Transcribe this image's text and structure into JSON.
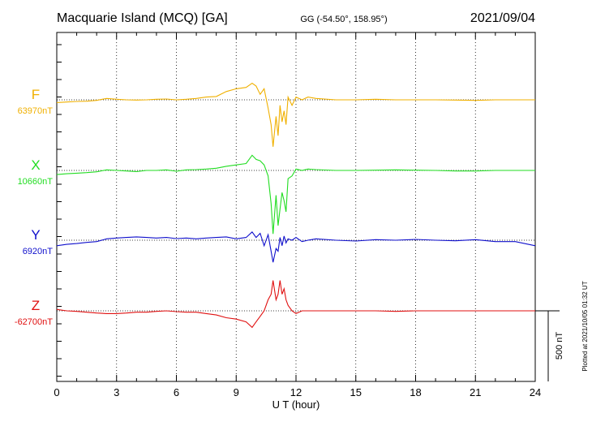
{
  "title": "Macquarie Island (MCQ)  [GA]",
  "coords": "GG (-54.50°, 158.95°)",
  "date": "2021/09/04",
  "plotted": "Plotted at 2021/10/05 01:32 UT",
  "scale_label": "500 nT",
  "chart_data": {
    "type": "line",
    "xlabel": "U T (hour)",
    "xlim": [
      0,
      24
    ],
    "xticks": [
      0,
      3,
      6,
      9,
      12,
      15,
      18,
      21,
      24
    ],
    "series": [
      {
        "name": "F",
        "baseline_label": "63970nT",
        "color": "#f0b000",
        "x": [
          0,
          0.5,
          1,
          1.5,
          2,
          2.5,
          3,
          3.5,
          4,
          4.5,
          5,
          5.5,
          6,
          6.5,
          7,
          7.5,
          8,
          8.5,
          9,
          9.5,
          9.8,
          10,
          10.2,
          10.4,
          10.6,
          10.75,
          10.85,
          11.0,
          11.1,
          11.2,
          11.3,
          11.4,
          11.5,
          11.6,
          11.8,
          12,
          12.3,
          12.6,
          13,
          14,
          15,
          16,
          17,
          18,
          19,
          20,
          21,
          22,
          23,
          24
        ],
        "values": [
          -10,
          -8,
          -6,
          -5,
          -2,
          5,
          2,
          0,
          -1,
          0,
          2,
          3,
          0,
          2,
          5,
          10,
          12,
          30,
          40,
          45,
          60,
          50,
          20,
          40,
          -30,
          -90,
          -170,
          -60,
          -130,
          -20,
          -80,
          -40,
          -90,
          10,
          -20,
          10,
          0,
          10,
          5,
          0,
          0,
          2,
          0,
          0,
          0,
          -1,
          -2,
          0,
          0,
          0
        ]
      },
      {
        "name": "X",
        "baseline_label": "10660nT",
        "color": "#22dd22",
        "x": [
          0,
          0.5,
          1,
          1.5,
          2,
          2.5,
          3,
          3.5,
          4,
          4.5,
          5,
          5.5,
          6,
          6.5,
          7,
          7.5,
          8,
          8.5,
          9,
          9.5,
          9.8,
          10,
          10.2,
          10.4,
          10.6,
          10.75,
          10.85,
          11.0,
          11.1,
          11.2,
          11.3,
          11.4,
          11.5,
          11.6,
          11.8,
          12,
          12.3,
          12.6,
          13,
          14,
          15,
          16,
          17,
          18,
          19,
          20,
          21,
          22,
          23,
          24
        ],
        "values": [
          -15,
          -12,
          -10,
          -8,
          -5,
          2,
          0,
          -2,
          -4,
          0,
          0,
          2,
          -3,
          2,
          3,
          5,
          8,
          15,
          20,
          25,
          55,
          40,
          35,
          20,
          -20,
          -120,
          -230,
          -90,
          -200,
          -140,
          -80,
          -110,
          -150,
          -30,
          -20,
          5,
          0,
          5,
          3,
          0,
          0,
          1,
          2,
          1,
          0,
          -2,
          -2,
          0,
          0,
          0
        ]
      },
      {
        "name": "Y",
        "baseline_label": "6920nT",
        "color": "#1010cc",
        "x": [
          0,
          0.5,
          1,
          1.5,
          2,
          2.5,
          3,
          3.5,
          4,
          4.5,
          5,
          5.5,
          6,
          6.5,
          7,
          7.5,
          8,
          8.5,
          9,
          9.5,
          9.8,
          10,
          10.2,
          10.4,
          10.6,
          10.75,
          10.85,
          11.0,
          11.1,
          11.2,
          11.3,
          11.4,
          11.5,
          11.6,
          11.8,
          12,
          12.3,
          12.6,
          13,
          14,
          15,
          16,
          17,
          18,
          19,
          20,
          21,
          22,
          23,
          24
        ],
        "values": [
          -20,
          -15,
          -12,
          -8,
          -5,
          5,
          8,
          10,
          12,
          10,
          8,
          10,
          6,
          8,
          5,
          8,
          10,
          12,
          5,
          10,
          30,
          10,
          25,
          -20,
          20,
          -40,
          -80,
          -30,
          -40,
          10,
          -20,
          15,
          -10,
          5,
          0,
          10,
          -5,
          0,
          5,
          0,
          -3,
          2,
          0,
          3,
          0,
          -2,
          2,
          -5,
          -5,
          -20
        ]
      },
      {
        "name": "Z",
        "baseline_label": "-62700nT",
        "color": "#e01010",
        "x": [
          0,
          0.5,
          1,
          1.5,
          2,
          2.5,
          3,
          3.5,
          4,
          4.5,
          5,
          5.5,
          6,
          6.5,
          7,
          7.5,
          8,
          8.5,
          9,
          9.5,
          9.8,
          10,
          10.2,
          10.4,
          10.6,
          10.75,
          10.85,
          11.0,
          11.1,
          11.2,
          11.3,
          11.4,
          11.5,
          11.6,
          11.8,
          12,
          12.3,
          12.6,
          13,
          14,
          15,
          16,
          17,
          18,
          19,
          20,
          21,
          22,
          23,
          24
        ],
        "values": [
          5,
          0,
          -2,
          -5,
          -8,
          -10,
          -10,
          -8,
          -5,
          -5,
          -2,
          0,
          -3,
          -5,
          -5,
          -10,
          -15,
          -25,
          -30,
          -40,
          -60,
          -40,
          -20,
          0,
          40,
          60,
          110,
          40,
          60,
          110,
          60,
          80,
          40,
          20,
          0,
          -10,
          0,
          0,
          0,
          0,
          0,
          0,
          -2,
          0,
          0,
          0,
          0,
          0,
          0,
          0
        ]
      }
    ]
  }
}
